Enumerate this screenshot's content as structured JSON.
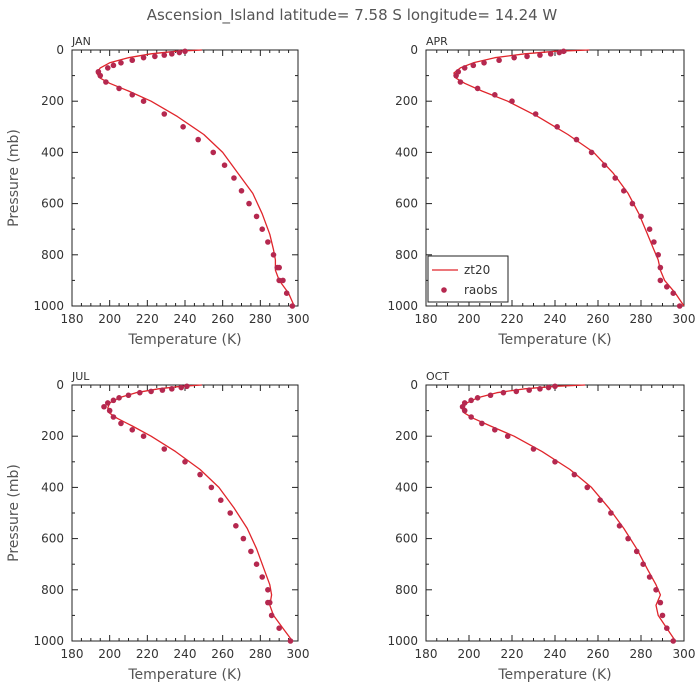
{
  "title": "Ascension_Island   latitude=  7.58 S longitude=  14.24 W",
  "colors": {
    "line": "#e0252b",
    "point": "#b5284f",
    "axis": "#222222",
    "text": "#555555"
  },
  "chart_data": [
    {
      "type": "line",
      "panel_label": "JAN",
      "xlabel": "Temperature (K)",
      "ylabel": "Pressure (mb)",
      "xlim": [
        180,
        300
      ],
      "ylim": [
        1000,
        0
      ],
      "x_ticks": [
        180,
        200,
        220,
        240,
        260,
        280,
        300
      ],
      "y_ticks": [
        0,
        200,
        400,
        600,
        800,
        1000
      ],
      "legend": false,
      "series": [
        {
          "name": "zt20",
          "style": "line",
          "x": [
            249,
            235,
            222,
            210,
            200,
            195,
            193,
            195,
            200,
            210,
            222,
            236,
            250,
            260,
            268,
            276,
            281,
            285,
            287,
            288,
            288,
            290,
            295,
            298
          ],
          "y": [
            0,
            5,
            15,
            30,
            50,
            70,
            90,
            110,
            130,
            160,
            200,
            260,
            330,
            400,
            480,
            560,
            640,
            720,
            780,
            820,
            860,
            900,
            950,
            1000
          ]
        },
        {
          "name": "raobs",
          "style": "points",
          "x": [
            240,
            237,
            233,
            229,
            224,
            218,
            212,
            206,
            202,
            199,
            194,
            195,
            198,
            205,
            212,
            218,
            229,
            239,
            247,
            255,
            261,
            266,
            270,
            274,
            278,
            281,
            284,
            287,
            289,
            290,
            290,
            292,
            294,
            297
          ],
          "y": [
            5,
            10,
            15,
            20,
            25,
            30,
            40,
            50,
            60,
            70,
            85,
            100,
            125,
            150,
            175,
            200,
            250,
            300,
            350,
            400,
            450,
            500,
            550,
            600,
            650,
            700,
            750,
            800,
            850,
            900,
            850,
            900,
            950,
            1000
          ]
        }
      ]
    },
    {
      "type": "line",
      "panel_label": "APR",
      "xlabel": "Temperature (K)",
      "ylabel": "",
      "xlim": [
        180,
        300
      ],
      "ylim": [
        1000,
        0
      ],
      "x_ticks": [
        180,
        200,
        220,
        240,
        260,
        280,
        300
      ],
      "y_ticks": [
        0,
        200,
        400,
        600,
        800,
        1000
      ],
      "legend": true,
      "series": [
        {
          "name": "zt20",
          "style": "line",
          "x": [
            256,
            240,
            226,
            212,
            202,
            196,
            193,
            194,
            198,
            206,
            218,
            232,
            246,
            258,
            267,
            274,
            279,
            283,
            286,
            288,
            289,
            291,
            296,
            300
          ],
          "y": [
            0,
            5,
            15,
            30,
            50,
            70,
            90,
            110,
            130,
            160,
            200,
            260,
            330,
            400,
            480,
            560,
            640,
            720,
            780,
            820,
            860,
            900,
            950,
            1000
          ]
        },
        {
          "name": "raobs",
          "style": "points",
          "x": [
            244,
            242,
            238,
            233,
            227,
            221,
            214,
            207,
            202,
            198,
            195,
            194,
            196,
            204,
            212,
            220,
            231,
            241,
            250,
            257,
            263,
            268,
            272,
            276,
            280,
            284,
            286,
            288,
            289,
            289,
            292,
            295,
            298
          ],
          "y": [
            5,
            10,
            15,
            20,
            25,
            30,
            40,
            50,
            60,
            70,
            85,
            100,
            125,
            150,
            175,
            200,
            250,
            300,
            350,
            400,
            450,
            500,
            550,
            600,
            650,
            700,
            750,
            800,
            850,
            900,
            925,
            950,
            1000
          ]
        }
      ]
    },
    {
      "type": "line",
      "panel_label": "JUL",
      "xlabel": "Temperature (K)",
      "ylabel": "Pressure (mb)",
      "xlim": [
        180,
        300
      ],
      "ylim": [
        1000,
        0
      ],
      "x_ticks": [
        180,
        200,
        220,
        240,
        260,
        280,
        300
      ],
      "y_ticks": [
        0,
        200,
        400,
        600,
        800,
        1000
      ],
      "legend": false,
      "series": [
        {
          "name": "zt20",
          "style": "line",
          "x": [
            249,
            238,
            226,
            214,
            205,
            200,
            199,
            200,
            204,
            212,
            222,
            235,
            248,
            258,
            266,
            273,
            278,
            282,
            285,
            286,
            285,
            287,
            292,
            297
          ],
          "y": [
            0,
            5,
            15,
            30,
            50,
            70,
            90,
            110,
            130,
            160,
            200,
            260,
            330,
            400,
            480,
            560,
            640,
            720,
            780,
            820,
            860,
            900,
            950,
            1000
          ]
        },
        {
          "name": "raobs",
          "style": "points",
          "x": [
            241,
            238,
            233,
            228,
            222,
            216,
            210,
            205,
            202,
            199,
            197,
            200,
            202,
            206,
            212,
            218,
            229,
            240,
            248,
            254,
            259,
            264,
            267,
            271,
            275,
            278,
            281,
            284,
            285,
            284,
            286,
            290,
            296
          ],
          "y": [
            5,
            10,
            15,
            20,
            25,
            30,
            40,
            50,
            60,
            70,
            85,
            100,
            125,
            150,
            175,
            200,
            250,
            300,
            350,
            400,
            450,
            500,
            550,
            600,
            650,
            700,
            750,
            800,
            850,
            850,
            900,
            950,
            1000
          ]
        }
      ]
    },
    {
      "type": "line",
      "panel_label": "OCT",
      "xlabel": "Temperature (K)",
      "ylabel": "",
      "xlim": [
        180,
        300
      ],
      "ylim": [
        1000,
        0
      ],
      "x_ticks": [
        180,
        200,
        220,
        240,
        260,
        280,
        300
      ],
      "y_ticks": [
        0,
        200,
        400,
        600,
        800,
        1000
      ],
      "legend": false,
      "series": [
        {
          "name": "zt20",
          "style": "line",
          "x": [
            254,
            240,
            226,
            213,
            204,
            199,
            197,
            198,
            202,
            210,
            221,
            234,
            247,
            257,
            265,
            272,
            278,
            283,
            287,
            289,
            287,
            288,
            292,
            296
          ],
          "y": [
            0,
            5,
            15,
            30,
            50,
            70,
            90,
            110,
            130,
            160,
            200,
            260,
            330,
            400,
            480,
            560,
            640,
            720,
            780,
            820,
            860,
            900,
            950,
            1000
          ]
        },
        {
          "name": "raobs",
          "style": "points",
          "x": [
            240,
            237,
            233,
            228,
            222,
            216,
            210,
            204,
            201,
            198,
            197,
            198,
            201,
            206,
            212,
            218,
            230,
            240,
            249,
            255,
            261,
            266,
            270,
            274,
            278,
            281,
            284,
            287,
            289,
            290,
            292,
            295
          ],
          "y": [
            5,
            10,
            15,
            20,
            25,
            30,
            40,
            50,
            60,
            70,
            85,
            100,
            125,
            150,
            175,
            200,
            250,
            300,
            350,
            400,
            450,
            500,
            550,
            600,
            650,
            700,
            750,
            800,
            850,
            900,
            950,
            1000
          ]
        }
      ]
    }
  ]
}
